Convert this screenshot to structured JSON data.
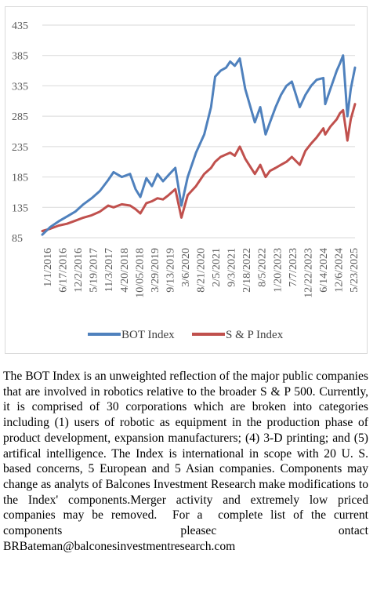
{
  "chart_data": {
    "type": "line",
    "title": "",
    "xlabel": "",
    "ylabel": "",
    "ylim": [
      85,
      435
    ],
    "yticks": [
      85,
      135,
      185,
      235,
      285,
      335,
      385,
      435
    ],
    "grid": true,
    "legend_position": "bottom",
    "x_tick_labels": [
      "1/1/2016",
      "6/17/2016",
      "12/2/2016",
      "5/19/2017",
      "11/3/2017",
      "4/20/2018",
      "10/05/2018",
      "3/29/2019",
      "9/13/2019",
      "3/6/2020",
      "8/21/2020",
      "2/5/2021",
      "9/3/2021",
      "2/18/2022",
      "8/5/2022",
      "1/20/2023",
      "7/7/2023",
      "12/22/2023",
      "6/14/2024",
      "12/6/2024",
      "5/23/2025"
    ],
    "x": [
      "2016-01-01",
      "2016-04-01",
      "2016-07-01",
      "2016-10-01",
      "2017-01-01",
      "2017-04-01",
      "2017-07-01",
      "2017-10-01",
      "2018-01-01",
      "2018-03-01",
      "2018-06-01",
      "2018-09-01",
      "2018-11-01",
      "2018-12-24",
      "2019-03-01",
      "2019-05-01",
      "2019-07-01",
      "2019-09-01",
      "2019-11-01",
      "2020-01-15",
      "2020-03-23",
      "2020-06-01",
      "2020-09-01",
      "2020-12-01",
      "2021-02-15",
      "2021-04-01",
      "2021-06-01",
      "2021-08-01",
      "2021-09-15",
      "2021-11-05",
      "2021-12-31",
      "2022-03-01",
      "2022-06-16",
      "2022-08-15",
      "2022-10-13",
      "2022-12-01",
      "2023-02-01",
      "2023-04-01",
      "2023-06-01",
      "2023-07-31",
      "2023-10-27",
      "2023-12-29",
      "2024-03-01",
      "2024-05-01",
      "2024-07-15",
      "2024-08-05",
      "2024-10-01",
      "2024-12-10",
      "2025-01-15",
      "2025-02-19",
      "2025-04-08",
      "2025-05-15",
      "2025-07-01"
    ],
    "series": [
      {
        "name": "BOT Index",
        "color": "#4f81bd",
        "values": [
          90,
          103,
          112,
          120,
          128,
          140,
          150,
          162,
          180,
          193,
          185,
          190,
          165,
          152,
          183,
          170,
          190,
          178,
          188,
          200,
          138,
          185,
          225,
          255,
          300,
          350,
          360,
          365,
          375,
          368,
          380,
          330,
          275,
          300,
          255,
          275,
          300,
          320,
          335,
          342,
          300,
          320,
          335,
          345,
          348,
          305,
          330,
          360,
          372,
          385,
          285,
          330,
          365
        ]
      },
      {
        "name": "S & P Index",
        "color": "#c0504d",
        "values": [
          96,
          100,
          105,
          108,
          113,
          118,
          122,
          128,
          138,
          135,
          140,
          138,
          132,
          125,
          142,
          145,
          150,
          148,
          155,
          165,
          118,
          155,
          170,
          190,
          200,
          210,
          218,
          222,
          225,
          220,
          235,
          215,
          190,
          205,
          185,
          195,
          200,
          205,
          210,
          218,
          205,
          228,
          240,
          250,
          265,
          255,
          268,
          280,
          290,
          295,
          245,
          280,
          305
        ]
      }
    ]
  }
}
